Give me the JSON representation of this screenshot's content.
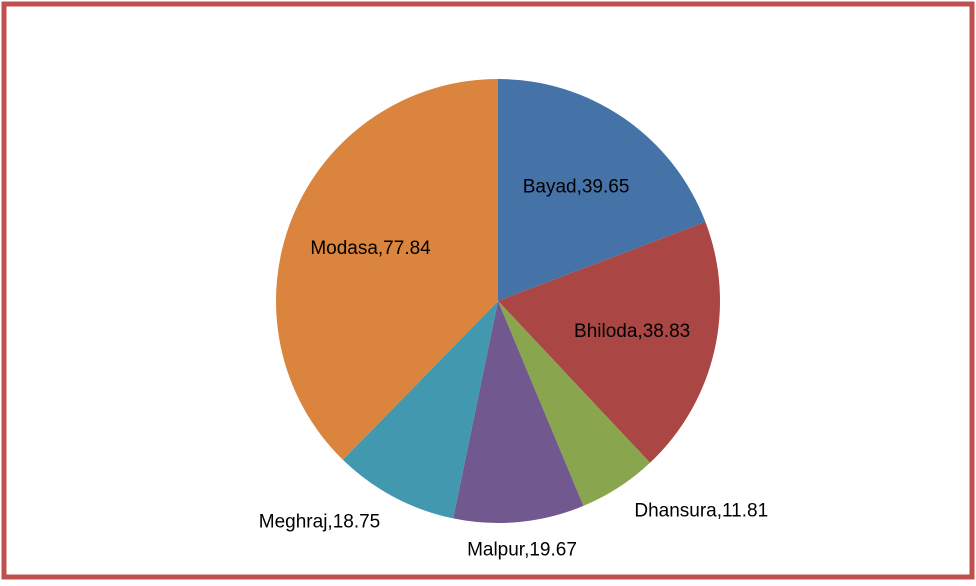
{
  "chart_data": {
    "type": "pie",
    "values": [
      39.65,
      38.83,
      11.81,
      19.67,
      18.75,
      77.84
    ],
    "value_labels": [
      "Bayad,39.65",
      "Bhiloda,38.83",
      "Dhansura,11.81",
      "Malpur,19.67",
      "Meghraj,18.75",
      "Modasa,77.84"
    ],
    "colors": [
      "#4572a7",
      "#aa4643",
      "#89a54e",
      "#71588f",
      "#4198af",
      "#db843d"
    ]
  }
}
